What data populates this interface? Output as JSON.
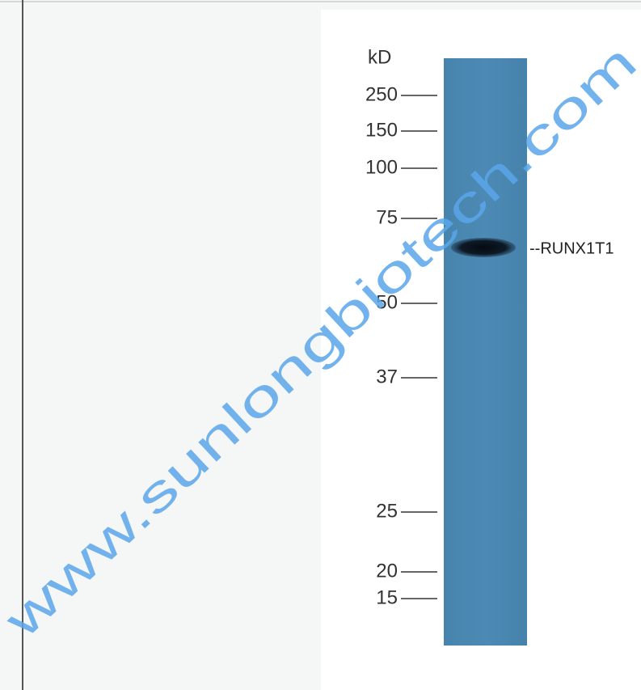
{
  "blot": {
    "unit": "kD",
    "markers": [
      "250",
      "150",
      "100",
      "75",
      "50",
      "37",
      "25",
      "20",
      "15"
    ],
    "band_label": "--RUNX1T1"
  },
  "watermark": "www.sunlongbiotech.com"
}
